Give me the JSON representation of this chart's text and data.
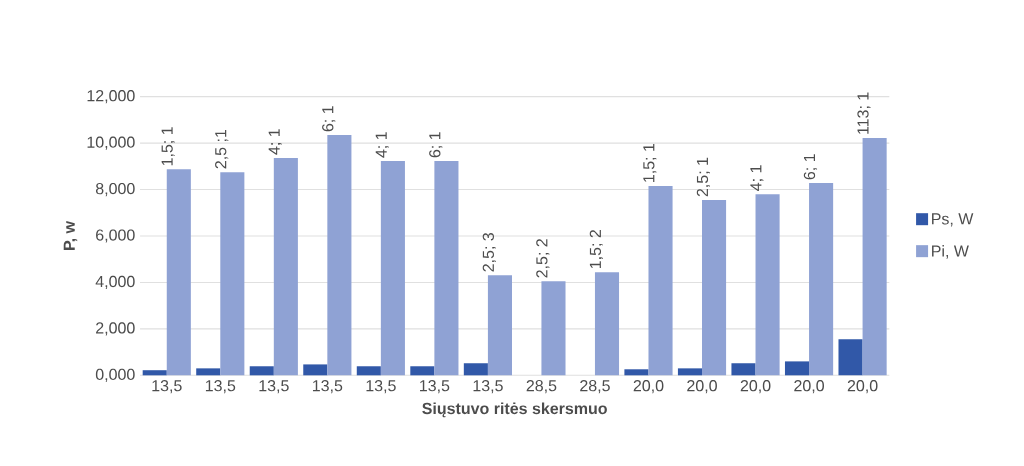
{
  "chart_data": {
    "type": "bar",
    "xlabel": "Siųstuvo ritės skersmuo",
    "ylabel": "P, w",
    "categories": [
      "13,5",
      "13,5",
      "13,5",
      "13,5",
      "13,5",
      "13,5",
      "13,5",
      "28,5",
      "28,5",
      "20,0",
      "20,0",
      "20,0",
      "20,0",
      "20,0"
    ],
    "series": [
      {
        "name": "Ps, W",
        "color": "#3158a8",
        "values": [
          0.22,
          0.3,
          0.39,
          0.47,
          0.39,
          0.39,
          0.52,
          null,
          null,
          0.26,
          0.3,
          0.52,
          0.6,
          1.55
        ]
      },
      {
        "name": "Pi, W",
        "color": "#8fa2d4",
        "values": [
          8.87,
          8.75,
          9.36,
          10.35,
          9.23,
          9.23,
          4.31,
          4.05,
          4.44,
          8.15,
          7.55,
          7.8,
          8.28,
          10.22
        ]
      }
    ],
    "annotations": [
      "1,5; 1",
      "2,5 ;1",
      "4; 1",
      "6; 1",
      "4; 1",
      "6; 1",
      "2,5; 3",
      "2,5; 2",
      "1,5; 2",
      "1,5; 1",
      "2,5; 1",
      "4; 1",
      "6; 1",
      "113; 1"
    ],
    "ylim": [
      0,
      12
    ],
    "yticks": [
      {
        "value": 0,
        "label": "0,000"
      },
      {
        "value": 2,
        "label": "2,000"
      },
      {
        "value": 4,
        "label": "4,000"
      },
      {
        "value": 6,
        "label": "6,000"
      },
      {
        "value": 8,
        "label": "8,000"
      },
      {
        "value": 10,
        "label": "10,000"
      },
      {
        "value": 12,
        "label": "12,000"
      }
    ],
    "grid": "y",
    "legend": "right"
  }
}
